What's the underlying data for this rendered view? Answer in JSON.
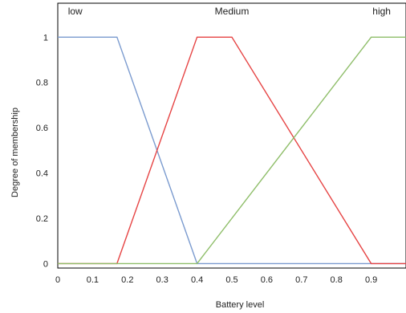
{
  "chart_data": {
    "type": "line",
    "title": "",
    "xlabel": "Battery level",
    "ylabel": "Degree of membership",
    "xlim": [
      0,
      1.0
    ],
    "ylim": [
      -0.02,
      1.15
    ],
    "x_ticks": [
      0,
      0.1,
      0.2,
      0.3,
      0.4,
      0.5,
      0.6,
      0.7,
      0.8,
      0.9
    ],
    "x_tick_labels": [
      "0",
      "0.1",
      "0.2",
      "0.3",
      "0.4",
      "0.5",
      "0.6",
      "0.7",
      "0.8",
      "0.9"
    ],
    "y_ticks": [
      0,
      0.2,
      0.4,
      0.6,
      0.8,
      1
    ],
    "y_tick_labels": [
      "0",
      "0.2",
      "0.4",
      "0.6",
      "0.8",
      "1"
    ],
    "grid": false,
    "annotations": [
      {
        "text": "low",
        "x": 0.05,
        "y": 1.1
      },
      {
        "text": "Medium",
        "x": 0.5,
        "y": 1.1
      },
      {
        "text": "high",
        "x": 0.93,
        "y": 1.1
      }
    ],
    "series": [
      {
        "label": "low",
        "color": "#7b9bcf",
        "x": [
          0,
          0.17,
          0.4,
          1.0
        ],
        "y": [
          1,
          1,
          0,
          0
        ]
      },
      {
        "label": "Medium",
        "color": "#e64444",
        "x": [
          0,
          0.17,
          0.4,
          0.5,
          0.9,
          1.0
        ],
        "y": [
          0,
          0,
          1,
          1,
          0,
          0
        ]
      },
      {
        "label": "high",
        "color": "#8fbe6a",
        "x": [
          0,
          0.4,
          0.9,
          1.0
        ],
        "y": [
          0,
          0,
          1,
          1
        ]
      }
    ]
  }
}
